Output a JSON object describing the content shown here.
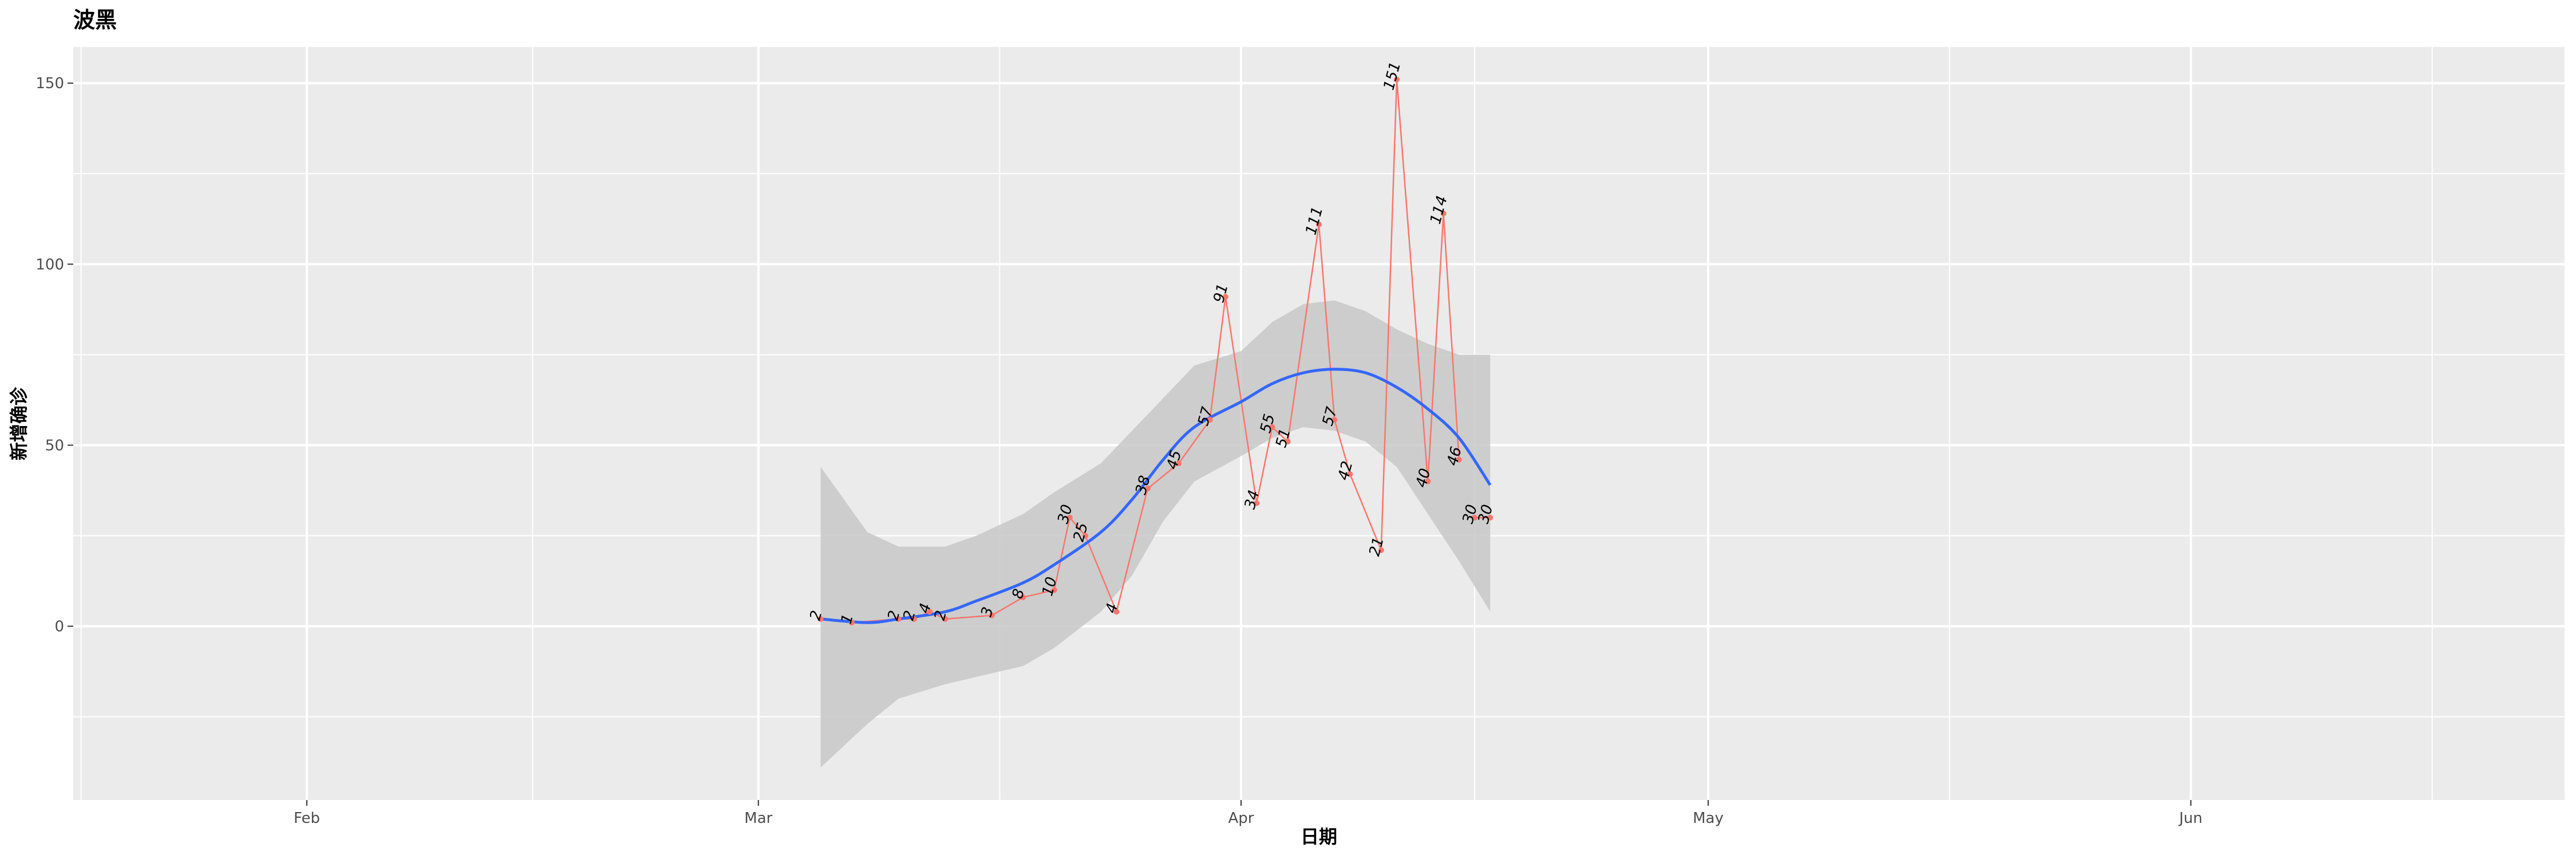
{
  "chart_data": {
    "type": "line",
    "title": "波黑",
    "xlabel": "日期",
    "ylabel": "新增确诊",
    "x_ticks": [
      {
        "date": "2020-02-01",
        "label": "Feb"
      },
      {
        "date": "2020-03-01",
        "label": "Mar"
      },
      {
        "date": "2020-04-01",
        "label": "Apr"
      },
      {
        "date": "2020-05-01",
        "label": "May"
      },
      {
        "date": "2020-06-01",
        "label": "Jun"
      }
    ],
    "xlim": [
      "2020-01-17",
      "2020-06-25"
    ],
    "y_ticks": [
      0,
      50,
      100,
      150
    ],
    "ylim": [
      -48,
      160
    ],
    "grid": true,
    "colors": {
      "panel": "#ebebeb",
      "grid": "#ffffff",
      "line": "#f8766d",
      "smooth": "#3366ff",
      "ribbon": "#c8c8c8"
    },
    "series": [
      {
        "x": [
          "2020-03-05",
          "2020-03-07",
          "2020-03-10",
          "2020-03-11",
          "2020-03-12",
          "2020-03-13",
          "2020-03-16",
          "2020-03-18",
          "2020-03-20",
          "2020-03-21",
          "2020-03-22",
          "2020-03-24",
          "2020-03-26",
          "2020-03-28",
          "2020-03-30",
          "2020-03-31",
          "2020-04-02",
          "2020-04-03",
          "2020-04-04",
          "2020-04-06",
          "2020-04-07",
          "2020-04-08",
          "2020-04-10",
          "2020-04-11",
          "2020-04-13",
          "2020-04-14",
          "2020-04-15"
        ],
        "y": [
          2,
          1,
          2,
          2,
          4,
          2,
          3,
          8,
          10,
          30,
          25,
          4,
          38,
          45,
          57,
          91,
          34,
          55,
          51,
          111,
          57,
          42,
          21,
          151,
          40,
          114,
          46
        ],
        "labels": [
          "2",
          "1",
          "2",
          "2",
          "4",
          "2",
          "3",
          "8",
          "10",
          "30",
          "25",
          "4",
          "38",
          "45",
          "57",
          "91",
          "34",
          "55",
          "51",
          "111",
          "57",
          "42",
          "21",
          "151",
          "40",
          "114",
          "46"
        ]
      },
      {
        "x": [
          "2020-04-16",
          "2020-04-17"
        ],
        "y": [
          30,
          30
        ],
        "labels": [
          "30",
          "30"
        ]
      }
    ],
    "smooth": {
      "x": [
        "2020-03-05",
        "2020-03-08",
        "2020-03-10",
        "2020-03-13",
        "2020-03-15",
        "2020-03-18",
        "2020-03-20",
        "2020-03-23",
        "2020-03-25",
        "2020-03-27",
        "2020-03-29",
        "2020-04-01",
        "2020-04-03",
        "2020-04-05",
        "2020-04-07",
        "2020-04-09",
        "2020-04-11",
        "2020-04-13",
        "2020-04-15",
        "2020-04-17"
      ],
      "y": [
        2,
        1,
        2,
        4,
        7,
        12,
        17,
        26,
        35,
        46,
        55,
        62,
        67,
        70,
        71,
        70,
        66,
        60,
        52,
        39
      ],
      "lower": [
        -39,
        -27,
        -20,
        -16,
        -14,
        -11,
        -6,
        4,
        14,
        29,
        40,
        47,
        52,
        55,
        54,
        51,
        44,
        31,
        18,
        4
      ],
      "upper": [
        44,
        26,
        22,
        22,
        25,
        31,
        37,
        45,
        54,
        63,
        72,
        76,
        84,
        89,
        90,
        87,
        82,
        78,
        75,
        75
      ]
    }
  }
}
